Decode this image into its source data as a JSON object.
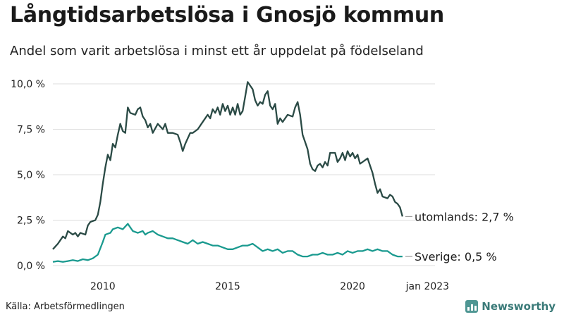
{
  "header": {
    "title": "Långtidsarbetslösa i Gnosjö kommun",
    "subtitle": "Andel som varit arbetslösa i minst ett år uppdelat på födelseland"
  },
  "footer": {
    "source": "Källa: Arbetsförmedlingen",
    "brand": "Newsworthy"
  },
  "colors": {
    "series_utomlands": "#2a4a45",
    "series_sverige": "#1a9a8f",
    "grid": "#dddddd",
    "axis_text": "#222222"
  },
  "chart_data": {
    "type": "line",
    "title": "Långtidsarbetslösa i Gnosjö kommun",
    "subtitle": "Andel som varit arbetslösa i minst ett år uppdelat på födelseland",
    "xlim": [
      2008.0,
      2023.3
    ],
    "ylim": [
      0,
      10.5
    ],
    "grid": true,
    "x_ticks": [
      {
        "x": 2010,
        "label": "2010"
      },
      {
        "x": 2015,
        "label": "2015"
      },
      {
        "x": 2020,
        "label": "2020"
      },
      {
        "x": 2023.0,
        "label": "jan 2023"
      }
    ],
    "y_ticks": [
      {
        "y": 0,
        "label": "0,0 %"
      },
      {
        "y": 2.5,
        "label": "2,5 %"
      },
      {
        "y": 5,
        "label": "5,0 %"
      },
      {
        "y": 7.5,
        "label": "7,5 %"
      },
      {
        "y": 10,
        "label": "10,0 %"
      }
    ],
    "series": [
      {
        "name": "utomlands",
        "end_label": "utomlands: 2,7 %",
        "color": "#2a4a45",
        "points": [
          [
            2008.0,
            0.9
          ],
          [
            2008.2,
            1.2
          ],
          [
            2008.4,
            1.6
          ],
          [
            2008.5,
            1.5
          ],
          [
            2008.6,
            1.9
          ],
          [
            2008.8,
            1.7
          ],
          [
            2008.9,
            1.8
          ],
          [
            2009.0,
            1.6
          ],
          [
            2009.1,
            1.8
          ],
          [
            2009.3,
            1.7
          ],
          [
            2009.4,
            2.2
          ],
          [
            2009.5,
            2.4
          ],
          [
            2009.7,
            2.5
          ],
          [
            2009.8,
            2.8
          ],
          [
            2009.9,
            3.5
          ],
          [
            2010.0,
            4.5
          ],
          [
            2010.1,
            5.4
          ],
          [
            2010.2,
            6.1
          ],
          [
            2010.3,
            5.8
          ],
          [
            2010.4,
            6.7
          ],
          [
            2010.5,
            6.5
          ],
          [
            2010.6,
            7.2
          ],
          [
            2010.7,
            7.8
          ],
          [
            2010.8,
            7.4
          ],
          [
            2010.9,
            7.3
          ],
          [
            2011.0,
            8.7
          ],
          [
            2011.1,
            8.4
          ],
          [
            2011.3,
            8.3
          ],
          [
            2011.4,
            8.6
          ],
          [
            2011.5,
            8.7
          ],
          [
            2011.6,
            8.2
          ],
          [
            2011.7,
            8.0
          ],
          [
            2011.8,
            7.6
          ],
          [
            2011.9,
            7.8
          ],
          [
            2012.0,
            7.3
          ],
          [
            2012.2,
            7.8
          ],
          [
            2012.4,
            7.5
          ],
          [
            2012.5,
            7.8
          ],
          [
            2012.6,
            7.3
          ],
          [
            2012.8,
            7.3
          ],
          [
            2013.0,
            7.2
          ],
          [
            2013.1,
            6.8
          ],
          [
            2013.2,
            6.3
          ],
          [
            2013.3,
            6.7
          ],
          [
            2013.5,
            7.3
          ],
          [
            2013.6,
            7.3
          ],
          [
            2013.8,
            7.5
          ],
          [
            2014.0,
            7.9
          ],
          [
            2014.2,
            8.3
          ],
          [
            2014.3,
            8.1
          ],
          [
            2014.4,
            8.6
          ],
          [
            2014.5,
            8.4
          ],
          [
            2014.6,
            8.7
          ],
          [
            2014.7,
            8.3
          ],
          [
            2014.8,
            8.9
          ],
          [
            2014.9,
            8.5
          ],
          [
            2015.0,
            8.8
          ],
          [
            2015.1,
            8.3
          ],
          [
            2015.2,
            8.7
          ],
          [
            2015.3,
            8.3
          ],
          [
            2015.4,
            8.9
          ],
          [
            2015.5,
            8.3
          ],
          [
            2015.6,
            8.5
          ],
          [
            2015.7,
            9.3
          ],
          [
            2015.8,
            10.1
          ],
          [
            2015.9,
            9.9
          ],
          [
            2016.0,
            9.7
          ],
          [
            2016.1,
            9.1
          ],
          [
            2016.2,
            8.8
          ],
          [
            2016.3,
            9.0
          ],
          [
            2016.4,
            8.9
          ],
          [
            2016.5,
            9.4
          ],
          [
            2016.6,
            9.6
          ],
          [
            2016.7,
            8.8
          ],
          [
            2016.8,
            8.6
          ],
          [
            2016.9,
            8.9
          ],
          [
            2017.0,
            7.8
          ],
          [
            2017.1,
            8.1
          ],
          [
            2017.2,
            7.9
          ],
          [
            2017.4,
            8.3
          ],
          [
            2017.6,
            8.2
          ],
          [
            2017.7,
            8.7
          ],
          [
            2017.8,
            9.0
          ],
          [
            2017.9,
            8.3
          ],
          [
            2018.0,
            7.2
          ],
          [
            2018.1,
            6.8
          ],
          [
            2018.2,
            6.4
          ],
          [
            2018.3,
            5.6
          ],
          [
            2018.4,
            5.3
          ],
          [
            2018.5,
            5.2
          ],
          [
            2018.6,
            5.5
          ],
          [
            2018.7,
            5.6
          ],
          [
            2018.8,
            5.4
          ],
          [
            2018.9,
            5.7
          ],
          [
            2019.0,
            5.5
          ],
          [
            2019.1,
            6.2
          ],
          [
            2019.3,
            6.2
          ],
          [
            2019.4,
            5.7
          ],
          [
            2019.5,
            5.9
          ],
          [
            2019.6,
            6.2
          ],
          [
            2019.7,
            5.8
          ],
          [
            2019.8,
            6.3
          ],
          [
            2019.9,
            6.0
          ],
          [
            2020.0,
            6.2
          ],
          [
            2020.1,
            5.9
          ],
          [
            2020.2,
            6.1
          ],
          [
            2020.3,
            5.6
          ],
          [
            2020.5,
            5.8
          ],
          [
            2020.6,
            5.9
          ],
          [
            2020.7,
            5.5
          ],
          [
            2020.8,
            5.1
          ],
          [
            2020.9,
            4.5
          ],
          [
            2021.0,
            4.0
          ],
          [
            2021.1,
            4.2
          ],
          [
            2021.2,
            3.8
          ],
          [
            2021.4,
            3.7
          ],
          [
            2021.5,
            3.9
          ],
          [
            2021.6,
            3.8
          ],
          [
            2021.7,
            3.5
          ],
          [
            2021.8,
            3.4
          ],
          [
            2021.9,
            3.2
          ],
          [
            2022.0,
            2.7
          ]
        ]
      },
      {
        "name": "Sverige",
        "end_label": "Sverige: 0,5 %",
        "color": "#1a9a8f",
        "points": [
          [
            2008.0,
            0.2
          ],
          [
            2008.2,
            0.25
          ],
          [
            2008.4,
            0.2
          ],
          [
            2008.6,
            0.25
          ],
          [
            2008.8,
            0.3
          ],
          [
            2009.0,
            0.25
          ],
          [
            2009.2,
            0.35
          ],
          [
            2009.4,
            0.3
          ],
          [
            2009.6,
            0.4
          ],
          [
            2009.8,
            0.6
          ],
          [
            2010.0,
            1.3
          ],
          [
            2010.1,
            1.7
          ],
          [
            2010.3,
            1.8
          ],
          [
            2010.4,
            2.0
          ],
          [
            2010.6,
            2.1
          ],
          [
            2010.8,
            2.0
          ],
          [
            2011.0,
            2.3
          ],
          [
            2011.2,
            1.9
          ],
          [
            2011.4,
            1.8
          ],
          [
            2011.6,
            1.9
          ],
          [
            2011.7,
            1.7
          ],
          [
            2011.8,
            1.8
          ],
          [
            2012.0,
            1.9
          ],
          [
            2012.2,
            1.7
          ],
          [
            2012.4,
            1.6
          ],
          [
            2012.6,
            1.5
          ],
          [
            2012.8,
            1.5
          ],
          [
            2013.0,
            1.4
          ],
          [
            2013.2,
            1.3
          ],
          [
            2013.4,
            1.2
          ],
          [
            2013.6,
            1.4
          ],
          [
            2013.8,
            1.2
          ],
          [
            2014.0,
            1.3
          ],
          [
            2014.2,
            1.2
          ],
          [
            2014.4,
            1.1
          ],
          [
            2014.6,
            1.1
          ],
          [
            2014.8,
            1.0
          ],
          [
            2015.0,
            0.9
          ],
          [
            2015.2,
            0.9
          ],
          [
            2015.4,
            1.0
          ],
          [
            2015.6,
            1.1
          ],
          [
            2015.8,
            1.1
          ],
          [
            2016.0,
            1.2
          ],
          [
            2016.2,
            1.0
          ],
          [
            2016.4,
            0.8
          ],
          [
            2016.6,
            0.9
          ],
          [
            2016.8,
            0.8
          ],
          [
            2017.0,
            0.9
          ],
          [
            2017.2,
            0.7
          ],
          [
            2017.4,
            0.8
          ],
          [
            2017.6,
            0.8
          ],
          [
            2017.8,
            0.6
          ],
          [
            2018.0,
            0.5
          ],
          [
            2018.2,
            0.5
          ],
          [
            2018.4,
            0.6
          ],
          [
            2018.6,
            0.6
          ],
          [
            2018.8,
            0.7
          ],
          [
            2019.0,
            0.6
          ],
          [
            2019.2,
            0.6
          ],
          [
            2019.4,
            0.7
          ],
          [
            2019.6,
            0.6
          ],
          [
            2019.8,
            0.8
          ],
          [
            2020.0,
            0.7
          ],
          [
            2020.2,
            0.8
          ],
          [
            2020.4,
            0.8
          ],
          [
            2020.6,
            0.9
          ],
          [
            2020.8,
            0.8
          ],
          [
            2021.0,
            0.9
          ],
          [
            2021.2,
            0.8
          ],
          [
            2021.4,
            0.8
          ],
          [
            2021.6,
            0.6
          ],
          [
            2021.8,
            0.5
          ],
          [
            2022.0,
            0.5
          ]
        ]
      }
    ]
  }
}
